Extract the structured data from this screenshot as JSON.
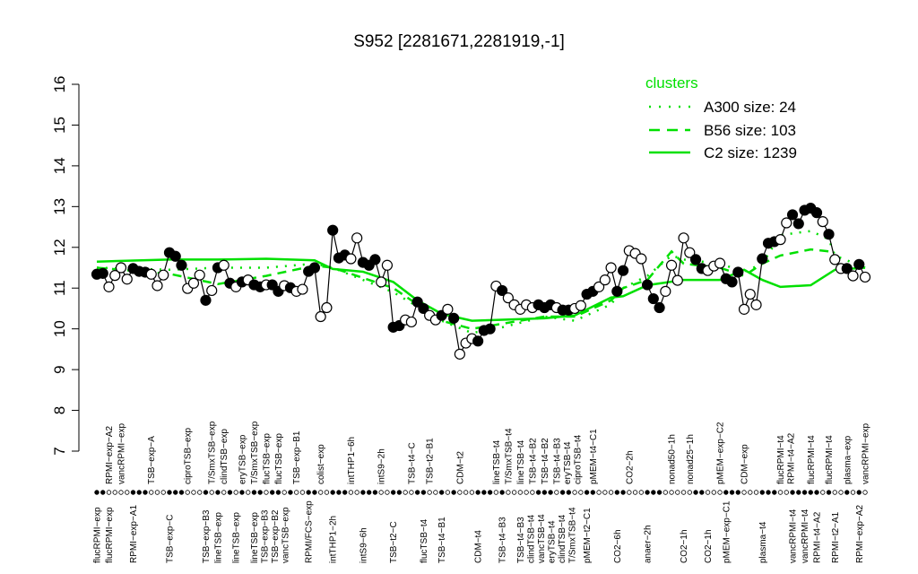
{
  "chart_data": {
    "type": "line",
    "title": "S952 [2281671,2281919,-1]",
    "xlabel": "",
    "ylabel": "",
    "ylim": [
      7,
      16
    ],
    "yticks": [
      7,
      8,
      9,
      10,
      11,
      12,
      13,
      14,
      15,
      16
    ],
    "grid": false,
    "legend": {
      "title": "clusters",
      "placement": "top-right",
      "color": "#00e000",
      "entries": [
        {
          "label": "A300 size: 24",
          "style": "dotted"
        },
        {
          "label": "B56 size: 103",
          "style": "dashed"
        },
        {
          "label": "C2 size: 1239",
          "style": "solid"
        }
      ]
    },
    "colors": {
      "points": "#000000",
      "clusters": "#00e000"
    },
    "points": [
      [
        11.34,
        1
      ],
      [
        11.36,
        1
      ],
      [
        11.03,
        0
      ],
      [
        11.31,
        0
      ],
      [
        11.5,
        0
      ],
      [
        11.22,
        0
      ],
      [
        11.48,
        1
      ],
      [
        11.41,
        1
      ],
      [
        11.39,
        1
      ],
      [
        11.34,
        0
      ],
      [
        11.06,
        0
      ],
      [
        11.32,
        0
      ],
      [
        11.87,
        1
      ],
      [
        11.78,
        1
      ],
      [
        11.56,
        1
      ],
      [
        10.99,
        0
      ],
      [
        11.12,
        0
      ],
      [
        11.32,
        0
      ],
      [
        10.7,
        1
      ],
      [
        10.94,
        0
      ],
      [
        11.5,
        1
      ],
      [
        11.56,
        0
      ],
      [
        11.12,
        1
      ],
      [
        11.03,
        0
      ],
      [
        11.15,
        1
      ],
      [
        11.2,
        0
      ],
      [
        11.08,
        1
      ],
      [
        11.03,
        1
      ],
      [
        11.08,
        0
      ],
      [
        11.08,
        1
      ],
      [
        10.92,
        1
      ],
      [
        11.06,
        0
      ],
      [
        11.01,
        1
      ],
      [
        10.92,
        0
      ],
      [
        10.97,
        0
      ],
      [
        11.41,
        1
      ],
      [
        11.5,
        1
      ],
      [
        10.3,
        0
      ],
      [
        10.52,
        0
      ],
      [
        12.42,
        1
      ],
      [
        11.74,
        1
      ],
      [
        11.81,
        1
      ],
      [
        11.72,
        0
      ],
      [
        12.23,
        0
      ],
      [
        11.63,
        1
      ],
      [
        11.56,
        1
      ],
      [
        11.7,
        1
      ],
      [
        11.15,
        0
      ],
      [
        11.56,
        0
      ],
      [
        10.04,
        1
      ],
      [
        10.08,
        1
      ],
      [
        10.22,
        0
      ],
      [
        10.17,
        0
      ],
      [
        10.66,
        1
      ],
      [
        10.5,
        1
      ],
      [
        10.33,
        0
      ],
      [
        10.22,
        0
      ],
      [
        10.33,
        1
      ],
      [
        10.48,
        0
      ],
      [
        10.26,
        1
      ],
      [
        9.38,
        0
      ],
      [
        9.65,
        0
      ],
      [
        9.76,
        0
      ],
      [
        9.7,
        1
      ],
      [
        9.96,
        1
      ],
      [
        10.0,
        1
      ],
      [
        11.05,
        0
      ],
      [
        10.94,
        1
      ],
      [
        10.76,
        0
      ],
      [
        10.59,
        0
      ],
      [
        10.48,
        0
      ],
      [
        10.59,
        0
      ],
      [
        10.52,
        0
      ],
      [
        10.59,
        1
      ],
      [
        10.52,
        1
      ],
      [
        10.59,
        1
      ],
      [
        10.52,
        0
      ],
      [
        10.46,
        1
      ],
      [
        10.46,
        1
      ],
      [
        10.5,
        0
      ],
      [
        10.57,
        0
      ],
      [
        10.85,
        1
      ],
      [
        10.92,
        1
      ],
      [
        11.03,
        0
      ],
      [
        11.2,
        0
      ],
      [
        11.5,
        0
      ],
      [
        10.92,
        1
      ],
      [
        11.43,
        1
      ],
      [
        11.92,
        0
      ],
      [
        11.85,
        0
      ],
      [
        11.72,
        0
      ],
      [
        11.08,
        1
      ],
      [
        10.74,
        1
      ],
      [
        10.52,
        1
      ],
      [
        10.92,
        0
      ],
      [
        11.56,
        0
      ],
      [
        11.19,
        0
      ],
      [
        12.23,
        0
      ],
      [
        11.87,
        0
      ],
      [
        11.7,
        1
      ],
      [
        11.48,
        1
      ],
      [
        11.43,
        0
      ],
      [
        11.54,
        0
      ],
      [
        11.61,
        0
      ],
      [
        11.23,
        1
      ],
      [
        11.15,
        1
      ],
      [
        11.39,
        1
      ],
      [
        10.48,
        0
      ],
      [
        10.85,
        0
      ],
      [
        10.59,
        0
      ],
      [
        11.72,
        1
      ],
      [
        12.1,
        1
      ],
      [
        12.14,
        1
      ],
      [
        12.19,
        0
      ],
      [
        12.6,
        0
      ],
      [
        12.8,
        1
      ],
      [
        12.58,
        1
      ],
      [
        12.91,
        1
      ],
      [
        12.96,
        1
      ],
      [
        12.85,
        1
      ],
      [
        12.63,
        0
      ],
      [
        12.32,
        1
      ],
      [
        11.7,
        0
      ],
      [
        11.48,
        0
      ],
      [
        11.48,
        1
      ],
      [
        11.3,
        0
      ],
      [
        11.58,
        1
      ],
      [
        11.27,
        0
      ]
    ],
    "clusters": {
      "C2": [
        [
          1,
          11.65
        ],
        [
          13,
          11.7
        ],
        [
          21,
          11.7
        ],
        [
          29,
          11.72
        ],
        [
          37,
          11.68
        ],
        [
          40,
          11.47
        ],
        [
          45,
          11.4
        ],
        [
          50,
          11.15
        ],
        [
          54,
          10.7
        ],
        [
          58,
          10.37
        ],
        [
          63,
          10.2
        ],
        [
          67,
          10.22
        ],
        [
          75,
          10.26
        ],
        [
          80,
          10.33
        ],
        [
          83,
          10.55
        ],
        [
          86,
          10.77
        ],
        [
          88,
          10.8
        ],
        [
          92,
          11.07
        ],
        [
          98,
          11.2
        ],
        [
          104,
          11.2
        ],
        [
          108,
          11.45
        ],
        [
          111,
          11.2
        ],
        [
          114,
          11.03
        ],
        [
          119,
          11.07
        ],
        [
          123,
          11.45
        ],
        [
          128,
          11.5
        ]
      ],
      "A300": [
        [
          1,
          11.5
        ],
        [
          13,
          11.45
        ],
        [
          21,
          11.5
        ],
        [
          29,
          11.5
        ],
        [
          37,
          11.6
        ],
        [
          40,
          11.5
        ],
        [
          50,
          10.9
        ],
        [
          58,
          10.2
        ],
        [
          63,
          9.9
        ],
        [
          67,
          10.0
        ],
        [
          75,
          10.3
        ],
        [
          80,
          10.2
        ],
        [
          86,
          10.6
        ],
        [
          88,
          11.0
        ],
        [
          92,
          11.3
        ],
        [
          96,
          11.8
        ],
        [
          98,
          11.7
        ],
        [
          104,
          11.6
        ],
        [
          108,
          11.4
        ],
        [
          111,
          11.6
        ],
        [
          114,
          12.3
        ],
        [
          119,
          12.4
        ],
        [
          122,
          12.2
        ],
        [
          123,
          11.8
        ],
        [
          128,
          11.5
        ]
      ],
      "B56": [
        [
          1,
          11.5
        ],
        [
          13,
          11.35
        ],
        [
          21,
          11.1
        ],
        [
          29,
          11.3
        ],
        [
          37,
          11.55
        ],
        [
          40,
          11.5
        ],
        [
          50,
          11.0
        ],
        [
          58,
          10.2
        ],
        [
          63,
          10.0
        ],
        [
          67,
          10.1
        ],
        [
          75,
          10.3
        ],
        [
          80,
          10.3
        ],
        [
          86,
          10.7
        ],
        [
          88,
          11.0
        ],
        [
          92,
          11.2
        ],
        [
          96,
          11.9
        ],
        [
          98,
          11.6
        ],
        [
          104,
          11.5
        ],
        [
          108,
          11.3
        ],
        [
          111,
          11.6
        ],
        [
          114,
          11.8
        ],
        [
          119,
          11.95
        ],
        [
          122,
          11.9
        ],
        [
          123,
          11.6
        ],
        [
          128,
          11.5
        ]
      ]
    },
    "top_labels": [
      [
        3,
        "RPMI−exp−A2"
      ],
      [
        5,
        "vancRPMI−exp"
      ],
      [
        10,
        "TSB−exp−A"
      ],
      [
        16,
        "ciproTSB−exp"
      ],
      [
        20,
        "T/SmxTSB−exp"
      ],
      [
        22,
        "clindTSB−exp"
      ],
      [
        25,
        "eryTSB−exp"
      ],
      [
        27,
        "T/SmxTSB−exp"
      ],
      [
        29,
        "flucTSB−exp"
      ],
      [
        31,
        "flucTSB−exp"
      ],
      [
        34,
        "TSB−exp−B1"
      ],
      [
        38,
        "colist−exp"
      ],
      [
        43,
        "intTHP1−6h"
      ],
      [
        48,
        "intS9−2h"
      ],
      [
        53,
        "TSB−t4−C"
      ],
      [
        56,
        "TSB−t2−B1"
      ],
      [
        61,
        "CDM−t2"
      ],
      [
        67,
        "lineTSB−t4"
      ],
      [
        69,
        "T/SmxTSB−t4"
      ],
      [
        71,
        "lineTSB−t4"
      ],
      [
        73,
        "TSB−t4−B2"
      ],
      [
        75,
        "TSB−t4−B2"
      ],
      [
        77,
        "TSB−t4−B3"
      ],
      [
        78,
        "eryTSB−t4"
      ],
      [
        80,
        "ciproTSB−t4"
      ],
      [
        83,
        "pMEM−t4−C1"
      ],
      [
        89,
        "CO2−2h"
      ],
      [
        96,
        "nonad50−1h"
      ],
      [
        99,
        "nonad25−1h"
      ],
      [
        104,
        "pMEM−exp−C2"
      ],
      [
        108,
        "CDM−exp"
      ],
      [
        114,
        "flucRPMI−t4"
      ],
      [
        115,
        "RPMI−t4−A2"
      ],
      [
        119,
        "flucRPMI−t4"
      ],
      [
        122,
        "flucRPMI−t4"
      ],
      [
        125,
        "plasma−exp"
      ],
      [
        128,
        "vancRPMI−exp"
      ]
    ],
    "bottom_labels": [
      [
        1,
        "flucRPMI−exp"
      ],
      [
        3,
        "flucRPMI−exp"
      ],
      [
        7,
        "RPMI−exp−A1"
      ],
      [
        13,
        "TSB−exp−C"
      ],
      [
        19,
        "TSB−exp−B3"
      ],
      [
        21,
        "lineTSB−exp"
      ],
      [
        24,
        "lineTSB−exp"
      ],
      [
        27,
        "lineTSB−exp"
      ],
      [
        28,
        "TSB−exp−B3"
      ],
      [
        30,
        "TSB−exp−B2"
      ],
      [
        32,
        "vancTSB−exp"
      ],
      [
        36,
        "RPMI/FCS−exp"
      ],
      [
        40,
        "intTHP1−2h"
      ],
      [
        45,
        "intS9−6h"
      ],
      [
        50,
        "TSB−t2−C"
      ],
      [
        55,
        "flucTSB−t4"
      ],
      [
        58,
        "TSB−t4−B1"
      ],
      [
        64,
        "CDM−t4"
      ],
      [
        68,
        "TSB−t4−B3"
      ],
      [
        71,
        "TSB−t4−B3"
      ],
      [
        72,
        "clindTSB−t4"
      ],
      [
        74,
        "vancTSB−t4"
      ],
      [
        75,
        "eryTSB−t4"
      ],
      [
        77,
        "clindTSB−t4"
      ],
      [
        79,
        "T/SmxTSB−t4"
      ],
      [
        82,
        "pMEM−t2−C1"
      ],
      [
        87,
        "CO2−6h"
      ],
      [
        92,
        "anaer−2h"
      ],
      [
        98,
        "CO2−1h"
      ],
      [
        102,
        "CO2−1h"
      ],
      [
        105,
        "pMEM−exp−C1"
      ],
      [
        111,
        "plasma−t4"
      ],
      [
        116,
        "vancRPMI−t4"
      ],
      [
        118,
        "vancRPMI−t4"
      ],
      [
        120,
        "RPMI−t4−A2"
      ],
      [
        123,
        "RPMI−t2−A1"
      ],
      [
        127,
        "RPMI−exp−A2"
      ]
    ]
  }
}
